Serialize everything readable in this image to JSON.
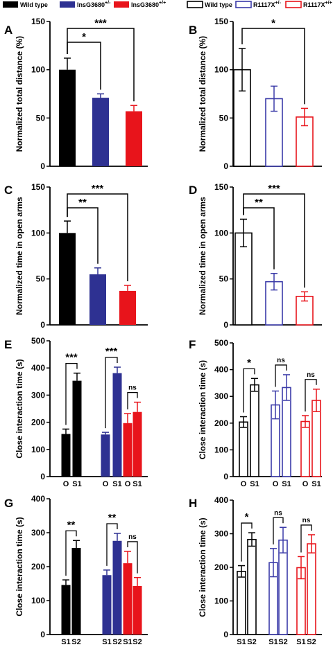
{
  "colors": {
    "wildtype_left": "#000000",
    "het_left": "#2e3192",
    "homo_left": "#e8141b",
    "wildtype_right": "#000000",
    "het_right": "#3a3aa8",
    "homo_right": "#e8141b"
  },
  "legends": {
    "left": [
      {
        "label": "Wild type",
        "sup": "",
        "color": "#000000",
        "filled": true
      },
      {
        "label": "InsG3680",
        "sup": "+/-",
        "color": "#2e3192",
        "filled": true
      },
      {
        "label": "InsG3680",
        "sup": "+/+",
        "color": "#e8141b",
        "filled": true
      }
    ],
    "right": [
      {
        "label": "Wild type",
        "sup": "",
        "color": "#000000",
        "filled": false
      },
      {
        "label": "R1117X",
        "sup": "+/-",
        "color": "#3a3aa8",
        "filled": false
      },
      {
        "label": "R1117X",
        "sup": "+/+",
        "color": "#e8141b",
        "filled": false
      }
    ]
  },
  "chart_data": [
    {
      "panel": "A",
      "type": "bar",
      "style": "filled",
      "side": "left",
      "ylabel": "Normalized total distance (%)",
      "ylim": [
        0,
        150
      ],
      "yticks": [
        0,
        50,
        100,
        150
      ],
      "categories": [
        "",
        "",
        ""
      ],
      "values": [
        100,
        71,
        57
      ],
      "errors": [
        12,
        4,
        6
      ],
      "significance": [
        {
          "from": 0,
          "to": 1,
          "label": "*"
        },
        {
          "from": 0,
          "to": 2,
          "label": "***"
        }
      ]
    },
    {
      "panel": "B",
      "type": "bar",
      "style": "open",
      "side": "right",
      "ylabel": "Normalized total distance (%)",
      "ylim": [
        0,
        150
      ],
      "yticks": [
        0,
        50,
        100,
        150
      ],
      "categories": [
        "",
        "",
        ""
      ],
      "values": [
        100,
        70,
        51
      ],
      "errors": [
        22,
        13,
        9
      ],
      "significance": [
        {
          "from": 0,
          "to": 2,
          "label": "*"
        }
      ]
    },
    {
      "panel": "C",
      "type": "bar",
      "style": "filled",
      "side": "left",
      "ylabel": "Normalized time in open arms",
      "ylim": [
        0,
        150
      ],
      "yticks": [
        0,
        50,
        100,
        150
      ],
      "categories": [
        "",
        "",
        ""
      ],
      "values": [
        100,
        55,
        37
      ],
      "errors": [
        13,
        7,
        6
      ],
      "significance": [
        {
          "from": 0,
          "to": 1,
          "label": "**"
        },
        {
          "from": 0,
          "to": 2,
          "label": "***"
        }
      ]
    },
    {
      "panel": "D",
      "type": "bar",
      "style": "open",
      "side": "right",
      "ylabel": "Normalized time in open arms",
      "ylim": [
        0,
        150
      ],
      "yticks": [
        0,
        50,
        100,
        150
      ],
      "categories": [
        "",
        "",
        ""
      ],
      "values": [
        100,
        47,
        31
      ],
      "errors": [
        15,
        9,
        5
      ],
      "significance": [
        {
          "from": 0,
          "to": 1,
          "label": "**"
        },
        {
          "from": 0,
          "to": 2,
          "label": "***"
        }
      ]
    },
    {
      "panel": "E",
      "type": "bar",
      "style": "filled",
      "side": "left",
      "ylabel": "Close interaction time (s)",
      "ylim": [
        0,
        500
      ],
      "yticks": [
        0,
        100,
        200,
        300,
        400,
        500
      ],
      "categories": [
        "O",
        "S1"
      ],
      "groups": [
        {
          "values": [
            157,
            353
          ],
          "errors": [
            18,
            28
          ],
          "label": "***"
        },
        {
          "values": [
            155,
            381
          ],
          "errors": [
            8,
            22
          ],
          "label": "***"
        },
        {
          "values": [
            197,
            238
          ],
          "errors": [
            35,
            36
          ],
          "label": "ns"
        }
      ]
    },
    {
      "panel": "F",
      "type": "bar",
      "style": "open",
      "side": "right",
      "ylabel": "Close interaction time (s)",
      "ylim": [
        0,
        500
      ],
      "yticks": [
        0,
        100,
        200,
        300,
        400,
        500
      ],
      "categories": [
        "O",
        "S1"
      ],
      "groups": [
        {
          "values": [
            204,
            343
          ],
          "errors": [
            20,
            24
          ],
          "label": "*"
        },
        {
          "values": [
            268,
            333
          ],
          "errors": [
            52,
            48
          ],
          "label": "ns"
        },
        {
          "values": [
            206,
            285
          ],
          "errors": [
            22,
            42
          ],
          "label": "ns"
        }
      ]
    },
    {
      "panel": "G",
      "type": "bar",
      "style": "filled",
      "side": "left",
      "ylabel": "Close interaction time (s)",
      "ylim": [
        0,
        400
      ],
      "yticks": [
        0,
        100,
        200,
        300,
        400
      ],
      "categories": [
        "S1",
        "S2"
      ],
      "groups": [
        {
          "values": [
            146,
            255
          ],
          "errors": [
            15,
            22
          ],
          "label": "**"
        },
        {
          "values": [
            175,
            276
          ],
          "errors": [
            15,
            22
          ],
          "label": "**"
        },
        {
          "values": [
            210,
            143
          ],
          "errors": [
            35,
            25
          ],
          "label": "ns"
        }
      ]
    },
    {
      "panel": "H",
      "type": "bar",
      "style": "open",
      "side": "right",
      "ylabel": "Close interaction time (s)",
      "ylim": [
        0,
        400
      ],
      "yticks": [
        0,
        100,
        200,
        300,
        400
      ],
      "categories": [
        "S1",
        "S2"
      ],
      "groups": [
        {
          "values": [
            188,
            283
          ],
          "errors": [
            17,
            20
          ],
          "label": "*"
        },
        {
          "values": [
            214,
            281
          ],
          "errors": [
            42,
            38
          ],
          "label": "ns"
        },
        {
          "values": [
            199,
            270
          ],
          "errors": [
            33,
            27
          ],
          "label": "ns"
        }
      ]
    }
  ]
}
